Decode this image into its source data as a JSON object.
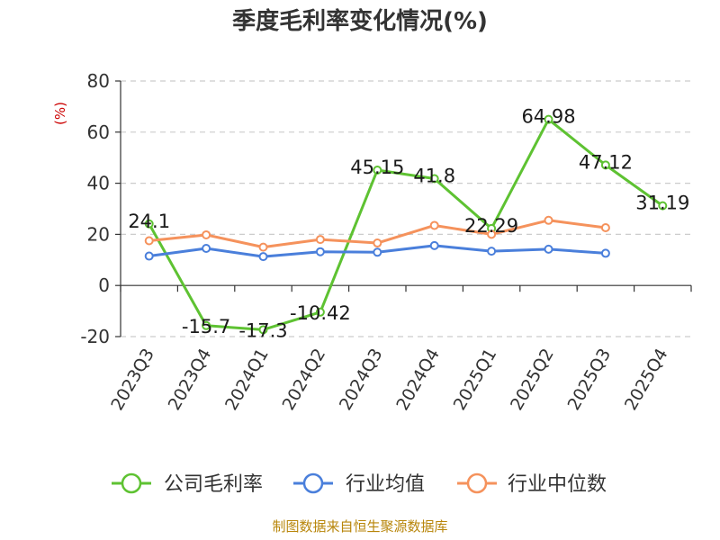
{
  "chart_data": {
    "type": "line",
    "title": "季度毛利率变化情况(%)",
    "unit": "(%)",
    "categories": [
      "2023Q3",
      "2023Q4",
      "2024Q1",
      "2024Q2",
      "2024Q3",
      "2024Q4",
      "2025Q1",
      "2025Q2",
      "2025Q3",
      "2025Q4"
    ],
    "ylim": [
      -20,
      80
    ],
    "yticks": [
      -20,
      0,
      20,
      40,
      60,
      80
    ],
    "ytick_labels": [
      "-20",
      "0",
      "20",
      "40",
      "60",
      "80"
    ],
    "grid": true,
    "legend_position": "bottom",
    "series": [
      {
        "name": "公司毛利率",
        "color": "#5ec232",
        "values": [
          24.1,
          -15.7,
          -17.3,
          -10.42,
          45.15,
          41.8,
          22.29,
          64.98,
          47.12,
          31.19
        ],
        "labels": [
          "24.1",
          "-15.7",
          "-17.3",
          "-10.42",
          "45.15",
          "41.8",
          "22.29",
          "64.98",
          "47.12",
          "31.19"
        ]
      },
      {
        "name": "行业均值",
        "color": "#4a7fdb",
        "values": [
          11.5,
          14.5,
          11.3,
          13.2,
          13.0,
          15.6,
          13.4,
          14.2,
          12.6,
          null
        ]
      },
      {
        "name": "行业中位数",
        "color": "#f5925c",
        "values": [
          17.5,
          19.8,
          15.0,
          18.0,
          16.6,
          23.5,
          20.0,
          25.5,
          22.6,
          null
        ]
      }
    ],
    "source": "制图数据来自恒生聚源数据库",
    "colors": {
      "axis": "#333333",
      "grid": "#cccccc",
      "unit": "#cc0000",
      "source": "#b8860b"
    }
  }
}
